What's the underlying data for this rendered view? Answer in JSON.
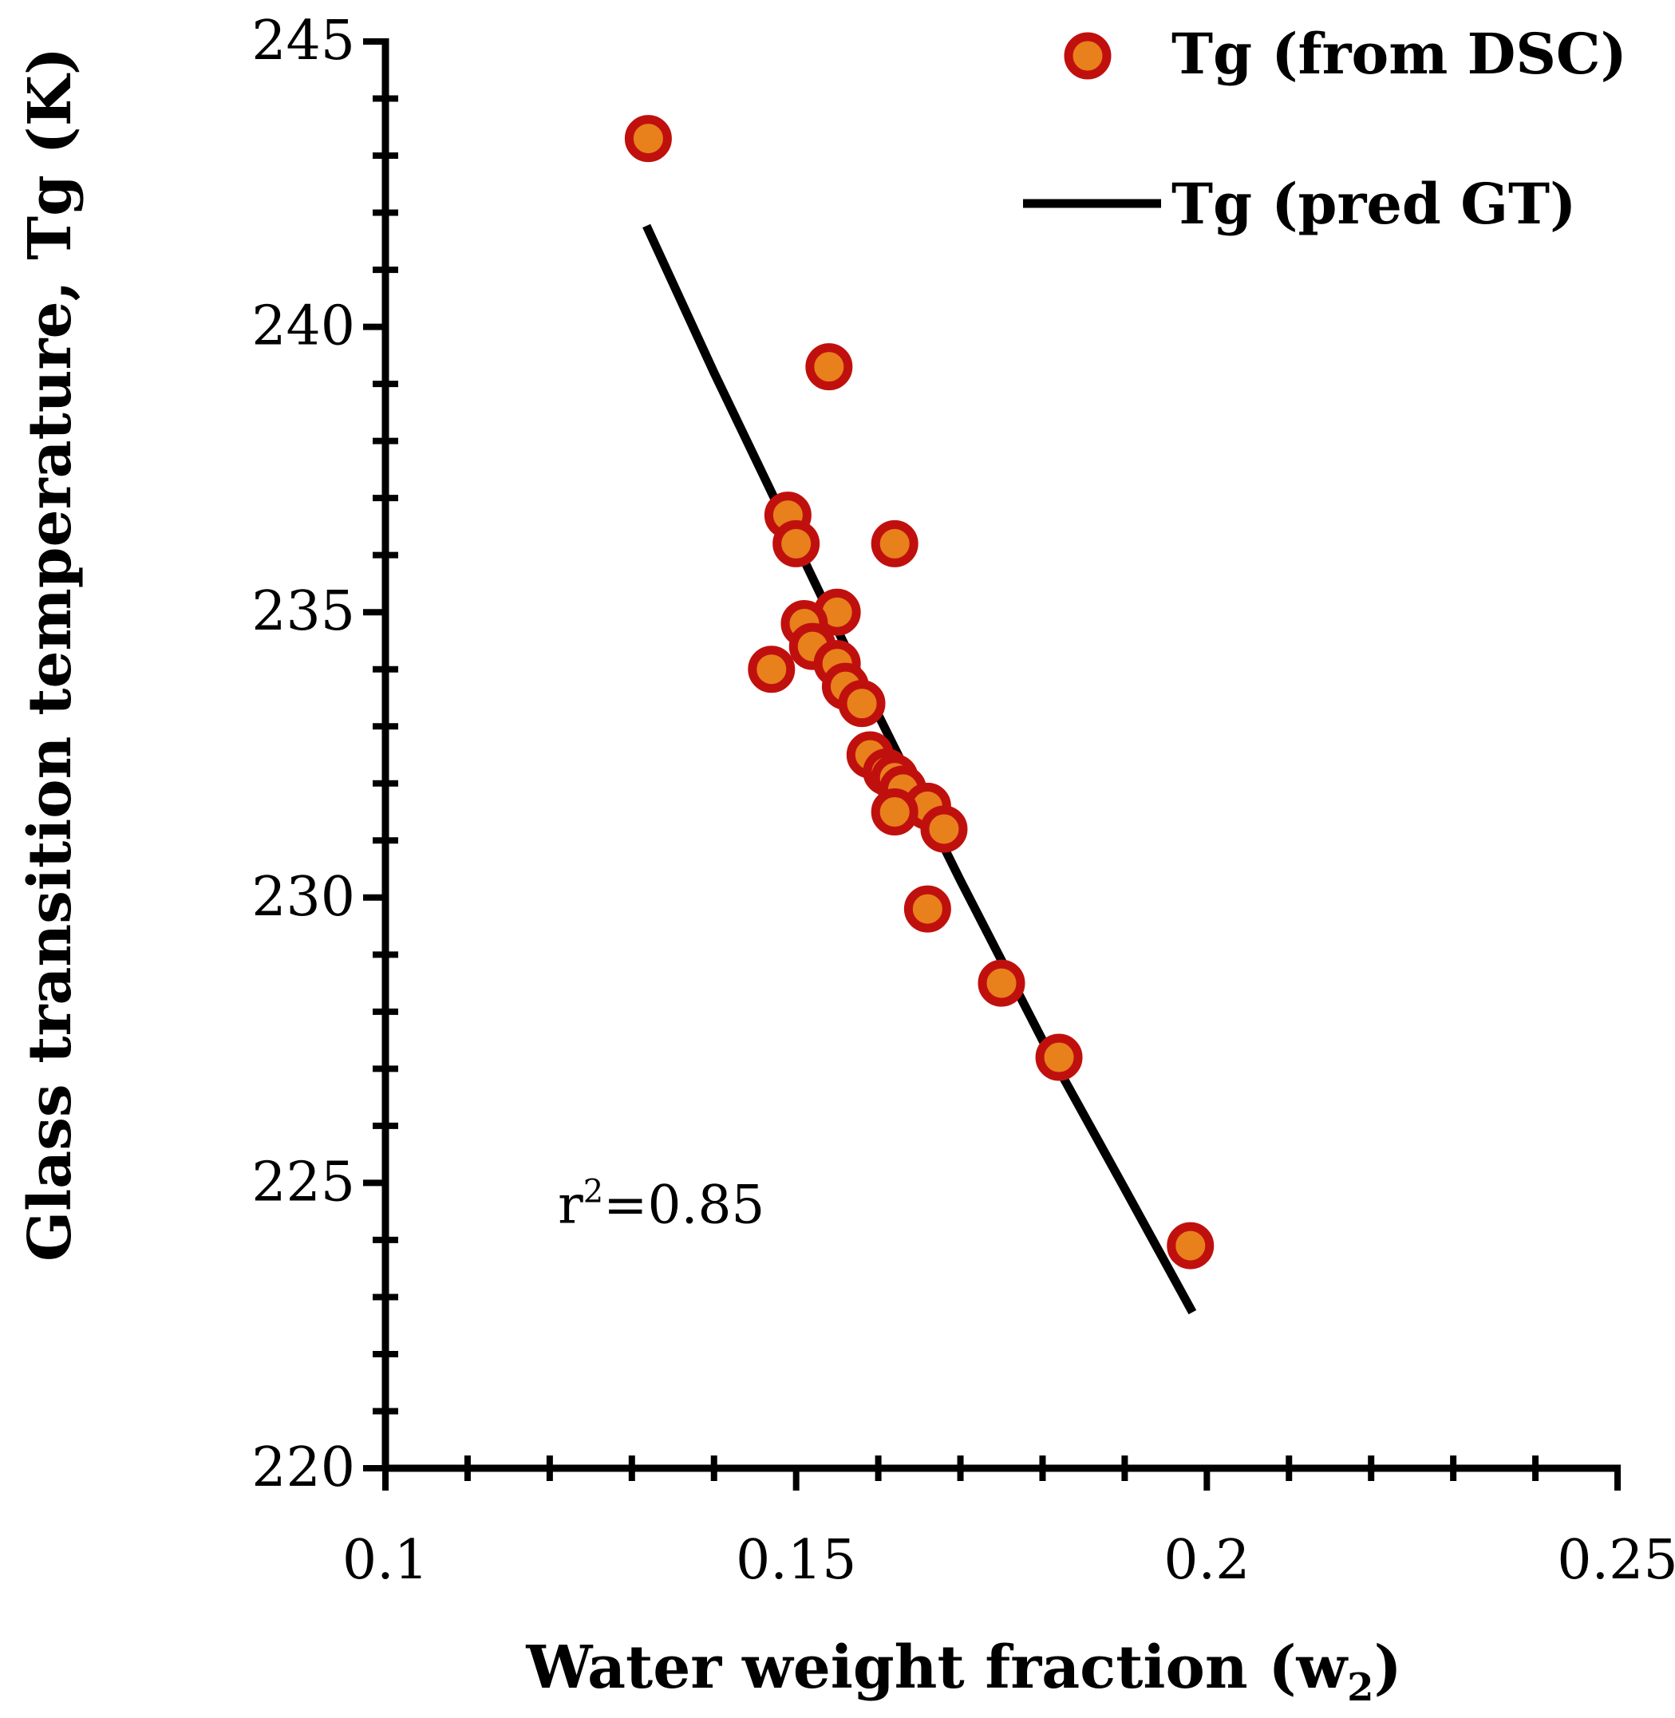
{
  "chart_data": {
    "type": "scatter",
    "title": "",
    "xlabel": "Water weight fraction (w",
    "xlabel_subscript": "2",
    "xlabel_close": ")",
    "ylabel": "Glass transition temperature, Tg (K)",
    "xlim": [
      0.1,
      0.25
    ],
    "ylim": [
      220,
      245
    ],
    "x_ticks": [
      0.1,
      0.15,
      0.2,
      0.25
    ],
    "x_tick_labels": [
      "0.1",
      "0.15",
      "0.2",
      "0.25"
    ],
    "x_minor_step": 0.01,
    "y_ticks": [
      220,
      225,
      230,
      235,
      240,
      245
    ],
    "y_tick_labels": [
      "220",
      "225",
      "230",
      "235",
      "240",
      "245"
    ],
    "y_minor_step": 1,
    "grid": false,
    "legend_position": "top-right",
    "series": [
      {
        "name": "Tg (from DSC)",
        "type": "scatter",
        "marker_fill": "#E8801C",
        "marker_edge": "#C0100E",
        "points": [
          [
            0.132,
            243.3
          ],
          [
            0.154,
            239.3
          ],
          [
            0.149,
            236.7
          ],
          [
            0.15,
            236.2
          ],
          [
            0.162,
            236.2
          ],
          [
            0.155,
            235.0
          ],
          [
            0.151,
            234.8
          ],
          [
            0.152,
            234.4
          ],
          [
            0.147,
            234.0
          ],
          [
            0.155,
            234.1
          ],
          [
            0.156,
            233.7
          ],
          [
            0.158,
            233.4
          ],
          [
            0.159,
            232.5
          ],
          [
            0.161,
            232.2
          ],
          [
            0.162,
            232.1
          ],
          [
            0.163,
            231.9
          ],
          [
            0.166,
            231.6
          ],
          [
            0.162,
            231.5
          ],
          [
            0.168,
            231.2
          ],
          [
            0.166,
            229.8
          ],
          [
            0.175,
            228.5
          ],
          [
            0.182,
            227.2
          ],
          [
            0.198,
            223.9
          ]
        ]
      },
      {
        "name": "Tg (pred GT)",
        "type": "line",
        "color": "#000000",
        "points": [
          [
            0.132,
            241.7
          ],
          [
            0.14,
            239.2
          ],
          [
            0.15,
            236.2
          ],
          [
            0.16,
            233.2
          ],
          [
            0.17,
            230.3
          ],
          [
            0.18,
            227.5
          ],
          [
            0.19,
            224.9
          ],
          [
            0.198,
            222.8
          ]
        ]
      }
    ],
    "annotations": [
      {
        "text_base": "r",
        "text_sup": "2",
        "text_rest": "=0.85",
        "x": 0.121,
        "y": 224.3
      }
    ]
  }
}
